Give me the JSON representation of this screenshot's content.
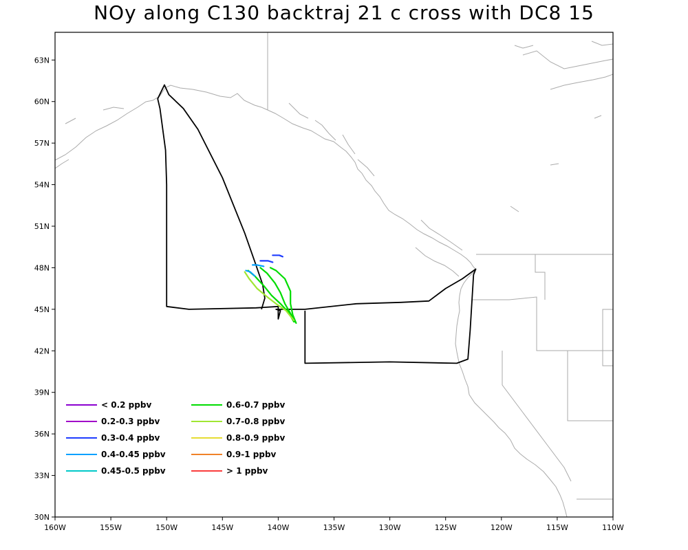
{
  "title": "NOy along C130 backtraj 21 c cross with DC8 15",
  "map": {
    "lon_range": [
      -160,
      -110
    ],
    "lat_range": [
      30,
      65
    ],
    "x_ticks": [
      {
        "lon": -160,
        "label": "160W"
      },
      {
        "lon": -155,
        "label": "155W"
      },
      {
        "lon": -150,
        "label": "150W"
      },
      {
        "lon": -145,
        "label": "145W"
      },
      {
        "lon": -140,
        "label": "140W"
      },
      {
        "lon": -135,
        "label": "135W"
      },
      {
        "lon": -130,
        "label": "130W"
      },
      {
        "lon": -125,
        "label": "125W"
      },
      {
        "lon": -120,
        "label": "120W"
      },
      {
        "lon": -115,
        "label": "115W"
      },
      {
        "lon": -110,
        "label": "110W"
      }
    ],
    "y_ticks": [
      {
        "lat": 30,
        "label": "30N"
      },
      {
        "lat": 33,
        "label": "33N"
      },
      {
        "lat": 36,
        "label": "36N"
      },
      {
        "lat": 39,
        "label": "39N"
      },
      {
        "lat": 42,
        "label": "42N"
      },
      {
        "lat": 45,
        "label": "45N"
      },
      {
        "lat": 48,
        "label": "48N"
      },
      {
        "lat": 51,
        "label": "51N"
      },
      {
        "lat": 54,
        "label": "54N"
      },
      {
        "lat": 57,
        "label": "57N"
      },
      {
        "lat": 60,
        "label": "60N"
      },
      {
        "lat": 63,
        "label": "63N"
      }
    ],
    "colors": {
      "coast": "#aaaaaa",
      "flight": "#000000"
    }
  },
  "chart_data": {
    "type": "line",
    "title": "NOy along C130 backtraj 21 c cross with DC8 15",
    "xlim": [
      -160,
      -110
    ],
    "ylim": [
      30,
      65
    ],
    "legend_placement": "bottom-left",
    "legend": [
      {
        "label": "< 0.2 ppbv",
        "color": "#8b00d0"
      },
      {
        "label": "0.2-0.3 ppbv",
        "color": "#a000c8"
      },
      {
        "label": "0.3-0.4 ppbv",
        "color": "#1e3cff"
      },
      {
        "label": "0.4-0.45 ppbv",
        "color": "#00a0ff"
      },
      {
        "label": "0.45-0.5 ppbv",
        "color": "#00c8c8"
      },
      {
        "label": "0.6-0.7 ppbv",
        "color": "#00dc00"
      },
      {
        "label": "0.7-0.8 ppbv",
        "color": "#a0e632"
      },
      {
        "label": "0.8-0.9 ppbv",
        "color": "#e6dc32"
      },
      {
        "label": "0.9-1 ppbv",
        "color": "#f08228"
      },
      {
        "label": "> 1 ppbv",
        "color": "#fa3c3c"
      }
    ],
    "flight_track": [
      [
        -141.5,
        45.0
      ],
      [
        -141.2,
        45.8
      ],
      [
        -141.4,
        46.8
      ],
      [
        -142.0,
        48.2
      ],
      [
        -143.0,
        50.5
      ],
      [
        -145.0,
        54.5
      ],
      [
        -147.2,
        58.0
      ],
      [
        -148.5,
        59.5
      ],
      [
        -149.8,
        60.5
      ],
      [
        -150.2,
        61.2
      ],
      [
        -150.8,
        60.2
      ],
      [
        -150.6,
        59.5
      ],
      [
        -150.1,
        56.5
      ],
      [
        -150.0,
        54.0
      ],
      [
        -150.0,
        50.0
      ],
      [
        -150.0,
        45.2
      ],
      [
        -148.0,
        45.0
      ],
      [
        -142.0,
        45.1
      ],
      [
        -140.0,
        45.2
      ],
      [
        -140.0,
        44.3
      ],
      [
        -139.8,
        44.9
      ],
      [
        -140.2,
        45.0
      ],
      [
        -137.6,
        45.0
      ],
      [
        -133.0,
        45.4
      ],
      [
        -129.0,
        45.5
      ],
      [
        -126.5,
        45.6
      ],
      [
        -125.0,
        46.5
      ],
      [
        -123.5,
        47.2
      ],
      [
        -122.3,
        47.9
      ],
      [
        -122.5,
        47.5
      ],
      [
        -122.8,
        43.5
      ],
      [
        -123.0,
        41.4
      ],
      [
        -124.0,
        41.1
      ],
      [
        -130.0,
        41.2
      ],
      [
        -137.6,
        41.1
      ],
      [
        -137.6,
        44.9
      ]
    ],
    "trajectories": [
      {
        "color": "#00dc00",
        "points": [
          [
            -138.4,
            44.0
          ],
          [
            -138.7,
            44.6
          ],
          [
            -138.9,
            45.4
          ],
          [
            -138.9,
            46.3
          ],
          [
            -139.4,
            47.2
          ],
          [
            -140.2,
            47.8
          ],
          [
            -140.7,
            48.0
          ]
        ]
      },
      {
        "color": "#00dc00",
        "points": [
          [
            -138.5,
            44.1
          ],
          [
            -138.9,
            44.7
          ],
          [
            -139.4,
            45.4
          ],
          [
            -139.8,
            46.2
          ],
          [
            -140.3,
            46.9
          ],
          [
            -141.0,
            47.6
          ],
          [
            -141.6,
            48.0
          ]
        ]
      },
      {
        "color": "#00dc00",
        "points": [
          [
            -138.6,
            44.1
          ],
          [
            -139.1,
            44.8
          ],
          [
            -139.8,
            45.4
          ],
          [
            -140.6,
            46.0
          ],
          [
            -141.3,
            46.7
          ],
          [
            -142.1,
            47.4
          ],
          [
            -142.7,
            47.8
          ]
        ]
      },
      {
        "color": "#a0e632",
        "points": [
          [
            -138.6,
            44.2
          ],
          [
            -139.3,
            44.9
          ],
          [
            -140.2,
            45.4
          ],
          [
            -141.0,
            45.9
          ],
          [
            -141.9,
            46.5
          ],
          [
            -142.6,
            47.2
          ],
          [
            -143.0,
            47.7
          ]
        ]
      },
      {
        "color": "#1e3cff",
        "points": [
          [
            -140.5,
            48.9
          ],
          [
            -139.9,
            48.9
          ],
          [
            -139.6,
            48.8
          ]
        ]
      },
      {
        "color": "#1e3cff",
        "points": [
          [
            -141.6,
            48.5
          ],
          [
            -140.9,
            48.5
          ],
          [
            -140.5,
            48.4
          ]
        ]
      },
      {
        "color": "#00a0ff",
        "points": [
          [
            -142.3,
            48.2
          ],
          [
            -141.9,
            48.2
          ],
          [
            -141.3,
            48.1
          ]
        ]
      },
      {
        "color": "#00a0ff",
        "points": [
          [
            -142.9,
            47.8
          ],
          [
            -142.5,
            47.7
          ],
          [
            -142.1,
            47.4
          ]
        ]
      }
    ]
  }
}
